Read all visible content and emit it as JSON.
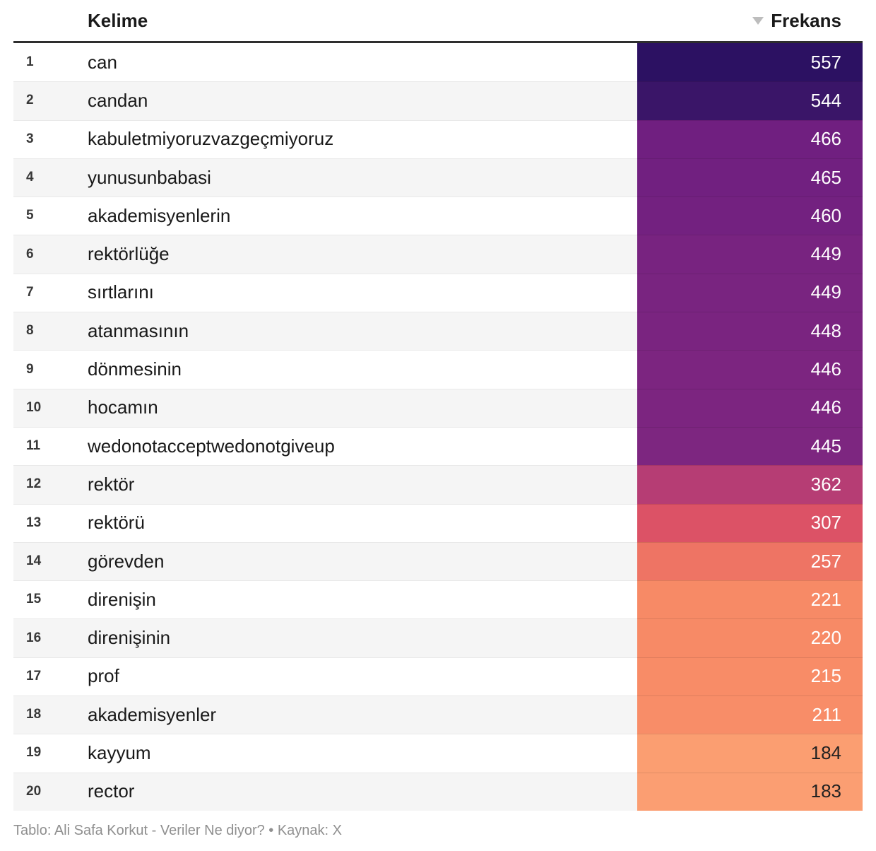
{
  "table": {
    "header": {
      "word_col": "Kelime",
      "freq_col": "Frekans",
      "sort_icon": "triangle-down",
      "sorted_by": "Frekans",
      "sort_direction": "desc"
    },
    "rows": [
      {
        "rank": "1",
        "word": "can",
        "value": "557",
        "bg": "#2c1162",
        "fg": "#ffffff"
      },
      {
        "rank": "2",
        "word": "candan",
        "value": "544",
        "bg": "#3a1568",
        "fg": "#ffffff"
      },
      {
        "rank": "3",
        "word": "kabuletmiyoruzvazgeçmiyoruz",
        "value": "466",
        "bg": "#701f80",
        "fg": "#ffffff"
      },
      {
        "rank": "4",
        "word": "yunusunbabasi",
        "value": "465",
        "bg": "#712080",
        "fg": "#ffffff"
      },
      {
        "rank": "5",
        "word": "akademisyenlerin",
        "value": "460",
        "bg": "#732180",
        "fg": "#ffffff"
      },
      {
        "rank": "6",
        "word": "rektörlüğe",
        "value": "449",
        "bg": "#782380",
        "fg": "#ffffff"
      },
      {
        "rank": "7",
        "word": "sırtlarını",
        "value": "449",
        "bg": "#792480",
        "fg": "#ffffff"
      },
      {
        "rank": "8",
        "word": "atanmasının",
        "value": "448",
        "bg": "#7a2480",
        "fg": "#ffffff"
      },
      {
        "rank": "9",
        "word": "dönmesinin",
        "value": "446",
        "bg": "#7c2580",
        "fg": "#ffffff"
      },
      {
        "rank": "10",
        "word": "hocamın",
        "value": "446",
        "bg": "#7c2580",
        "fg": "#ffffff"
      },
      {
        "rank": "11",
        "word": "wedonotacceptwedonotgiveup",
        "value": "445",
        "bg": "#7d2680",
        "fg": "#ffffff"
      },
      {
        "rank": "12",
        "word": "rektör",
        "value": "362",
        "bg": "#b63d74",
        "fg": "#ffffff"
      },
      {
        "rank": "13",
        "word": "rektörü",
        "value": "307",
        "bg": "#dc5266",
        "fg": "#ffffff"
      },
      {
        "rank": "14",
        "word": "görevden",
        "value": "257",
        "bg": "#ee7464",
        "fg": "#ffffff"
      },
      {
        "rank": "15",
        "word": "direnişin",
        "value": "221",
        "bg": "#f78a66",
        "fg": "#ffffff"
      },
      {
        "rank": "16",
        "word": "direnişinin",
        "value": "220",
        "bg": "#f78a66",
        "fg": "#ffffff"
      },
      {
        "rank": "17",
        "word": "prof",
        "value": "215",
        "bg": "#f88c67",
        "fg": "#ffffff"
      },
      {
        "rank": "18",
        "word": "akademisyenler",
        "value": "211",
        "bg": "#f88d68",
        "fg": "#ffffff"
      },
      {
        "rank": "19",
        "word": "kayyum",
        "value": "184",
        "bg": "#fb9e71",
        "fg": "#212121"
      },
      {
        "rank": "20",
        "word": "rector",
        "value": "183",
        "bg": "#fb9e72",
        "fg": "#212121"
      }
    ]
  },
  "footer": {
    "text": "Tablo: Ali Safa Korkut - Veriler Ne diyor? • Kaynak: X"
  },
  "colors": {
    "header_rule": "#2e2e2e",
    "row_stripe": "#f5f5f5",
    "row_divider": "#e9e9e9",
    "sort_arrow": "#bdbdbd",
    "footer_text": "#8f8f8f",
    "scale_high": "#2c1162",
    "scale_low": "#fb9e72"
  },
  "chart_data": {
    "type": "table",
    "title": "",
    "columns": [
      "Kelime",
      "Frekans"
    ],
    "categories": [
      "can",
      "candan",
      "kabuletmiyoruzvazgeçmiyoruz",
      "yunusunbabasi",
      "akademisyenlerin",
      "rektörlüğe",
      "sırtlarını",
      "atanmasının",
      "dönmesinin",
      "hocamın",
      "wedonotacceptwedonotgiveup",
      "rektör",
      "rektörü",
      "görevden",
      "direnişin",
      "direnişinin",
      "prof",
      "akademisyenler",
      "kayyum",
      "rector"
    ],
    "values": [
      557,
      544,
      466,
      465,
      460,
      449,
      449,
      448,
      446,
      446,
      445,
      362,
      307,
      257,
      221,
      220,
      215,
      211,
      184,
      183
    ],
    "sort": "Frekans descending",
    "value_range": [
      183,
      557
    ],
    "color_scale": "sequential magma-like: dark purple = high, light orange = low",
    "legend_position": "none",
    "grid": false
  }
}
